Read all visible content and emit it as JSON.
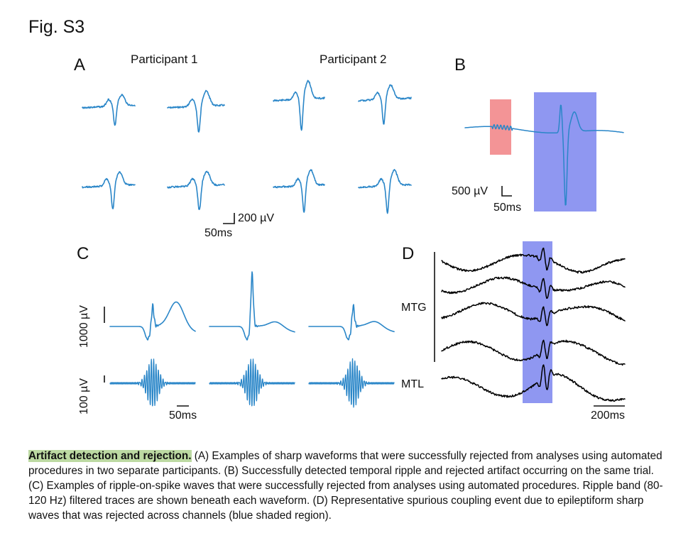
{
  "figure_label": "Fig. S3",
  "panels": {
    "A": {
      "letter": "A",
      "titles": [
        "Participant 1",
        "Participant 2"
      ],
      "scale_v": "200 µV",
      "scale_t": "50ms"
    },
    "B": {
      "letter": "B",
      "scale_v": "500 µV",
      "scale_t": "50ms"
    },
    "C": {
      "letter": "C",
      "ylabel_top": "1000 µV",
      "ylabel_bottom": "100 µV",
      "scale_t": "50ms"
    },
    "D": {
      "letter": "D",
      "channel_labels": [
        "MTG",
        "MTL"
      ],
      "scale_t": "200ms"
    }
  },
  "colors": {
    "trace_blue": "#2a86c8",
    "trace_black": "#000000",
    "artifact_shade": "#7b85ee",
    "ripple_shade": "#f28e90",
    "caption_highlight": "#bcd9a2"
  },
  "caption": {
    "title": "Artifact detection and rejection.",
    "body": " (A) Examples of sharp waveforms that were successfully rejected from analyses using automated procedures in two separate participants. (B) Successfully detected temporal ripple and rejected artifact occurring on the same trial. (C) Examples of ripple-on-spike waves that were successfully rejected from analyses using automated procedures. Ripple band (80-120 Hz) filtered traces are shown beneath each waveform. (D) Representative spurious coupling event due to epileptiform sharp waves that was rejected across channels (blue shaded region)."
  }
}
